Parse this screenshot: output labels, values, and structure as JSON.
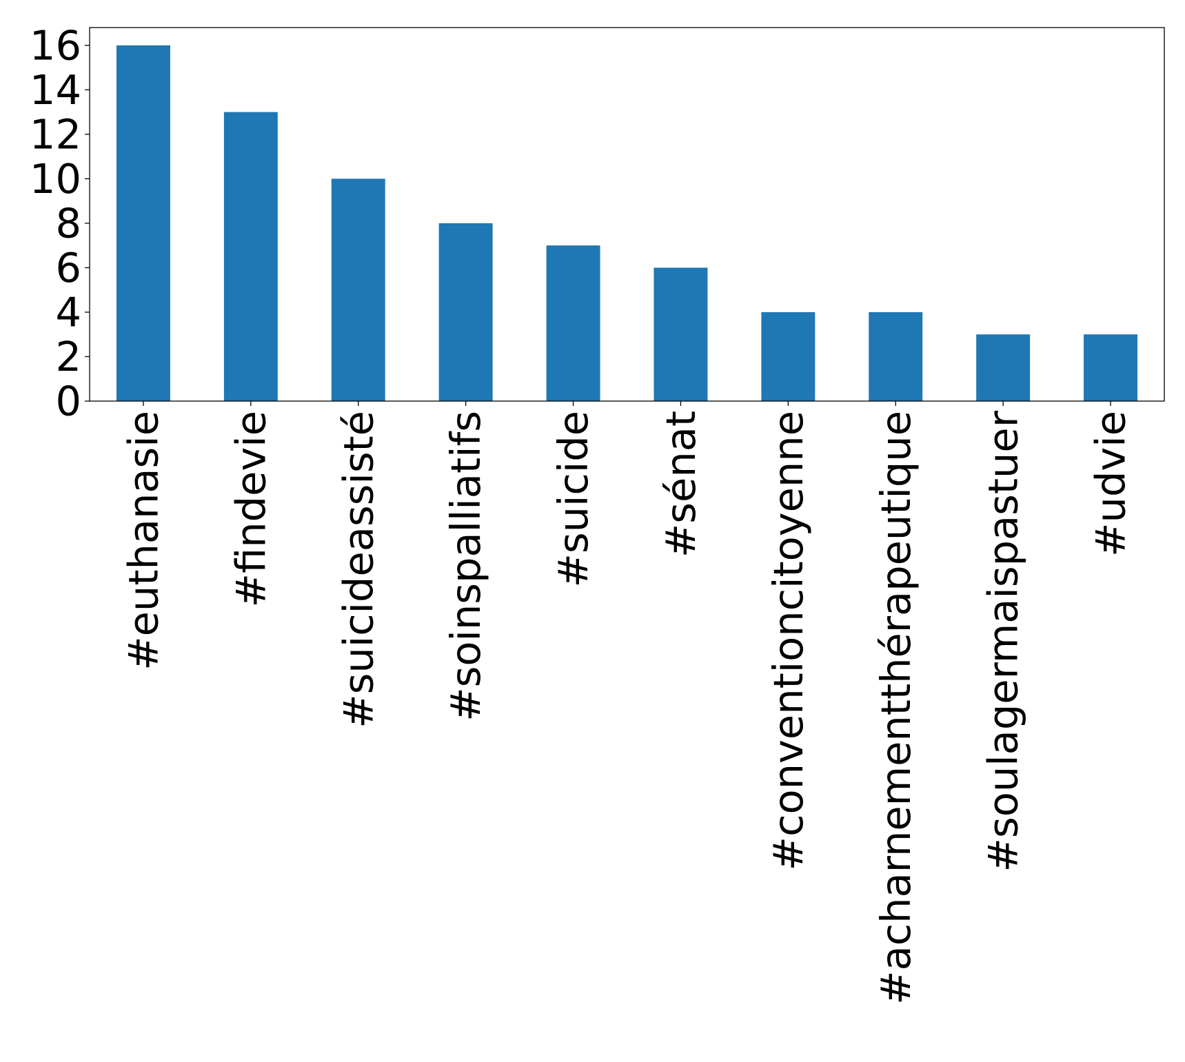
{
  "chart_data": {
    "type": "bar",
    "categories": [
      "#euthanasie",
      "#findevie",
      "#suicideassisté",
      "#soinspalliatifs",
      "#suicide",
      "#sénat",
      "#conventioncitoyenne",
      "#acharnementthérapeutique",
      "#soulagermaispastuer",
      "#udvie"
    ],
    "values": [
      16,
      13,
      10,
      8,
      7,
      6,
      4,
      4,
      3,
      3
    ],
    "title": "",
    "xlabel": "",
    "ylabel": "",
    "ylim": [
      0,
      16.8
    ],
    "yticks": [
      0,
      2,
      4,
      6,
      8,
      10,
      12,
      14,
      16
    ],
    "bar_color": "#1f77b4",
    "grid": false,
    "legend": "none"
  }
}
